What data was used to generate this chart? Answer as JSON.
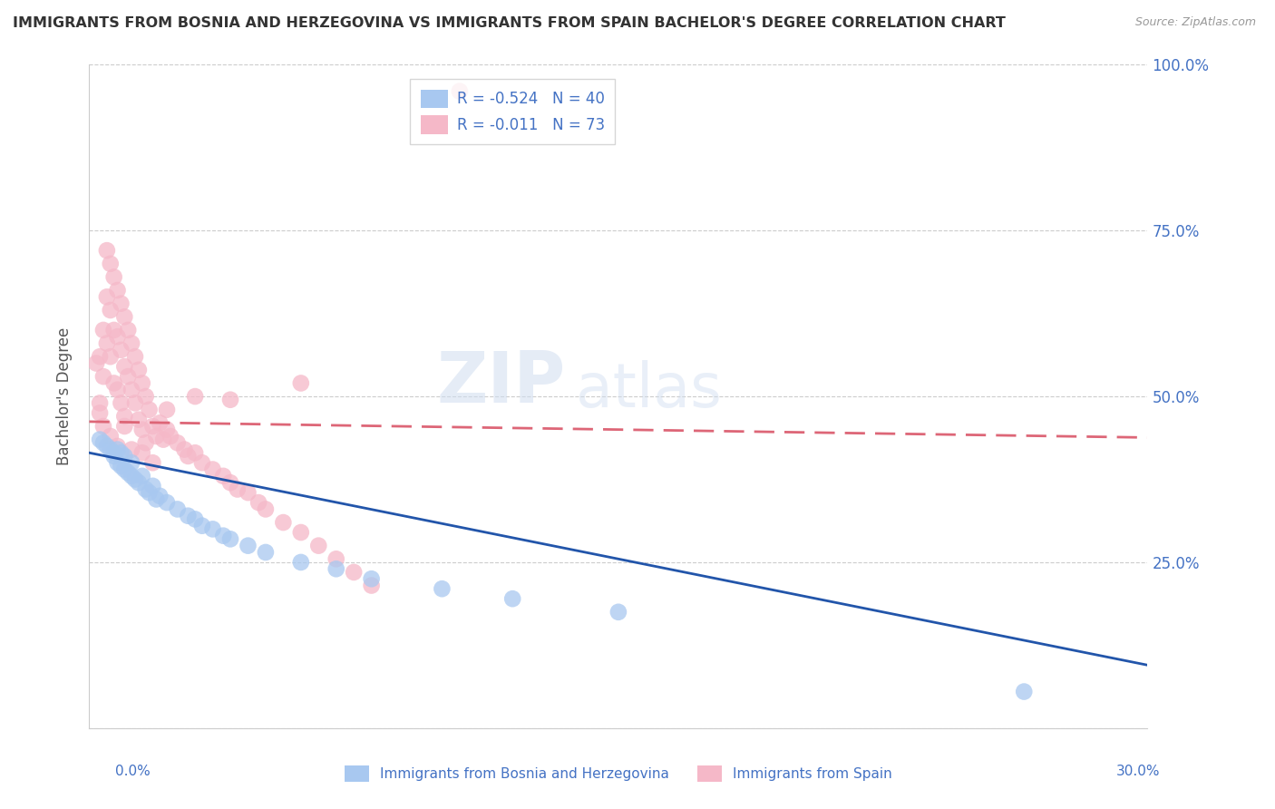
{
  "title": "IMMIGRANTS FROM BOSNIA AND HERZEGOVINA VS IMMIGRANTS FROM SPAIN BACHELOR'S DEGREE CORRELATION CHART",
  "source": "Source: ZipAtlas.com",
  "ylabel": "Bachelor's Degree",
  "xlabel_bottom_left": "0.0%",
  "xlabel_bottom_right": "30.0%",
  "legend_blue_r": -0.524,
  "legend_blue_n": 40,
  "legend_pink_r": -0.011,
  "legend_pink_n": 73,
  "x_min": 0.0,
  "x_max": 0.3,
  "y_min": 0.0,
  "y_max": 1.0,
  "y_ticks": [
    0.0,
    0.25,
    0.5,
    0.75,
    1.0
  ],
  "y_tick_labels_right": [
    "",
    "25.0%",
    "50.0%",
    "75.0%",
    "100.0%"
  ],
  "blue_color": "#a8c8f0",
  "pink_color": "#f5b8c8",
  "blue_line_color": "#2255aa",
  "pink_line_color": "#dd6677",
  "title_color": "#333333",
  "axis_label_color": "#555555",
  "tick_color": "#4472c4",
  "watermark_zip": "ZIP",
  "watermark_atlas": "atlas",
  "blue_scatter_x": [
    0.003,
    0.004,
    0.005,
    0.006,
    0.007,
    0.007,
    0.008,
    0.008,
    0.009,
    0.009,
    0.01,
    0.01,
    0.011,
    0.012,
    0.012,
    0.013,
    0.014,
    0.015,
    0.016,
    0.017,
    0.018,
    0.019,
    0.02,
    0.022,
    0.025,
    0.028,
    0.03,
    0.032,
    0.035,
    0.038,
    0.04,
    0.045,
    0.05,
    0.06,
    0.07,
    0.08,
    0.1,
    0.12,
    0.15,
    0.265
  ],
  "blue_scatter_y": [
    0.435,
    0.43,
    0.425,
    0.42,
    0.415,
    0.41,
    0.42,
    0.4,
    0.415,
    0.395,
    0.41,
    0.39,
    0.385,
    0.4,
    0.38,
    0.375,
    0.37,
    0.38,
    0.36,
    0.355,
    0.365,
    0.345,
    0.35,
    0.34,
    0.33,
    0.32,
    0.315,
    0.305,
    0.3,
    0.29,
    0.285,
    0.275,
    0.265,
    0.25,
    0.24,
    0.225,
    0.21,
    0.195,
    0.175,
    0.055
  ],
  "pink_scatter_x": [
    0.002,
    0.003,
    0.003,
    0.004,
    0.004,
    0.005,
    0.005,
    0.005,
    0.006,
    0.006,
    0.006,
    0.007,
    0.007,
    0.007,
    0.008,
    0.008,
    0.008,
    0.009,
    0.009,
    0.009,
    0.01,
    0.01,
    0.01,
    0.011,
    0.011,
    0.012,
    0.012,
    0.013,
    0.013,
    0.014,
    0.014,
    0.015,
    0.015,
    0.016,
    0.016,
    0.017,
    0.018,
    0.019,
    0.02,
    0.021,
    0.022,
    0.023,
    0.025,
    0.027,
    0.028,
    0.03,
    0.032,
    0.035,
    0.038,
    0.04,
    0.042,
    0.045,
    0.048,
    0.05,
    0.055,
    0.06,
    0.065,
    0.07,
    0.075,
    0.08,
    0.003,
    0.004,
    0.006,
    0.008,
    0.01,
    0.012,
    0.015,
    0.018,
    0.022,
    0.03,
    0.04,
    0.06,
    0.105
  ],
  "pink_scatter_y": [
    0.55,
    0.49,
    0.56,
    0.53,
    0.6,
    0.72,
    0.65,
    0.58,
    0.7,
    0.63,
    0.56,
    0.68,
    0.6,
    0.52,
    0.66,
    0.59,
    0.51,
    0.64,
    0.57,
    0.49,
    0.62,
    0.545,
    0.47,
    0.6,
    0.53,
    0.58,
    0.51,
    0.56,
    0.49,
    0.54,
    0.465,
    0.52,
    0.45,
    0.5,
    0.43,
    0.48,
    0.455,
    0.44,
    0.46,
    0.435,
    0.45,
    0.44,
    0.43,
    0.42,
    0.41,
    0.415,
    0.4,
    0.39,
    0.38,
    0.37,
    0.36,
    0.355,
    0.34,
    0.33,
    0.31,
    0.295,
    0.275,
    0.255,
    0.235,
    0.215,
    0.475,
    0.455,
    0.44,
    0.425,
    0.455,
    0.42,
    0.415,
    0.4,
    0.48,
    0.5,
    0.495,
    0.52,
    0.96
  ],
  "blue_line_x": [
    0.0,
    0.3
  ],
  "blue_line_y": [
    0.415,
    0.095
  ],
  "pink_line_x": [
    0.0,
    0.3
  ],
  "pink_line_y": [
    0.462,
    0.438
  ]
}
